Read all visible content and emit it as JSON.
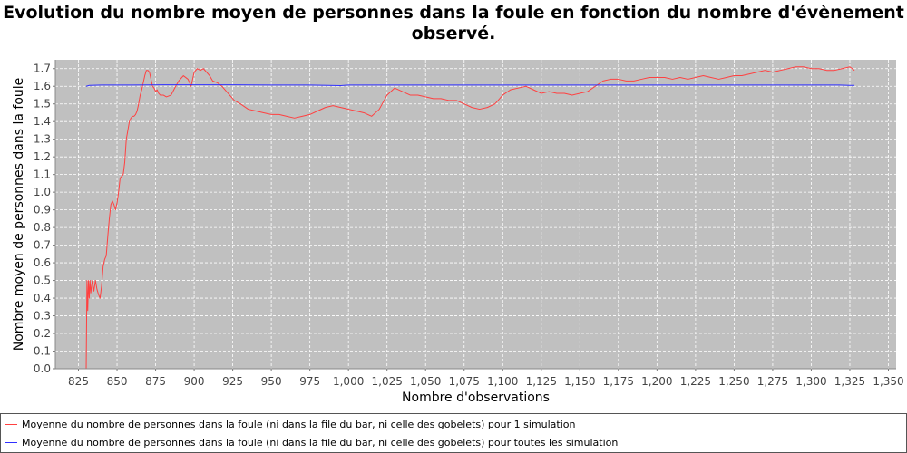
{
  "chart_data": {
    "type": "line",
    "title": "Evolution du nombre moyen de personnes dans la foule en fonction du nombre d'évènement observé.",
    "xlabel": "Nombre d'observations",
    "ylabel": "Nombre moyen de personnes dans la foule",
    "xlim": [
      810,
      1355
    ],
    "ylim": [
      0,
      1.75
    ],
    "x_ticks": [
      825,
      850,
      875,
      900,
      925,
      950,
      975,
      1000,
      1025,
      1050,
      1075,
      1100,
      1125,
      1150,
      1175,
      1200,
      1225,
      1250,
      1275,
      1300,
      1325,
      1350
    ],
    "x_tick_labels": [
      "825",
      "850",
      "875",
      "900",
      "925",
      "950",
      "975",
      "1,000",
      "1,025",
      "1,050",
      "1,075",
      "1,100",
      "1,125",
      "1,150",
      "1,175",
      "1,200",
      "1,225",
      "1,250",
      "1,275",
      "1,300",
      "1,325",
      "1,350"
    ],
    "y_ticks": [
      0.0,
      0.1,
      0.2,
      0.3,
      0.4,
      0.5,
      0.6,
      0.7,
      0.8,
      0.9,
      1.0,
      1.1,
      1.2,
      1.3,
      1.4,
      1.5,
      1.6,
      1.7
    ],
    "y_tick_labels": [
      "0.0",
      "0.1",
      "0.2",
      "0.3",
      "0.4",
      "0.5",
      "0.6",
      "0.7",
      "0.8",
      "0.9",
      "1.0",
      "1.1",
      "1.2",
      "1.3",
      "1.4",
      "1.5",
      "1.6",
      "1.7"
    ],
    "grid": true,
    "legend_position": "bottom",
    "colors": {
      "plot_background": "#c0c0c0",
      "grid": "#ffffff"
    },
    "series": [
      {
        "name": "Moyenne du nombre de personnes dans la foule (ni dans la file du bar, ni celle des gobelets) pour 1 simulation",
        "color": "#ff4040",
        "x": [
          830,
          830.5,
          831,
          831.5,
          832,
          832.5,
          833,
          834,
          835,
          836,
          837,
          838,
          839,
          840,
          841,
          842,
          843,
          844,
          845,
          846,
          847,
          848,
          849,
          850,
          851,
          852,
          853,
          854,
          855,
          856,
          857,
          858,
          859,
          860,
          861,
          862,
          863,
          864,
          865,
          866,
          867,
          868,
          869,
          870,
          871,
          872,
          873,
          874,
          875,
          876,
          877,
          878,
          880,
          882,
          885,
          888,
          890,
          893,
          896,
          898,
          900,
          902,
          904,
          906,
          908,
          910,
          912,
          915,
          918,
          922,
          926,
          930,
          935,
          940,
          945,
          950,
          955,
          960,
          965,
          970,
          975,
          980,
          985,
          990,
          995,
          1000,
          1005,
          1010,
          1015,
          1020,
          1025,
          1030,
          1035,
          1040,
          1045,
          1050,
          1055,
          1060,
          1065,
          1070,
          1075,
          1080,
          1085,
          1090,
          1095,
          1100,
          1105,
          1110,
          1115,
          1120,
          1125,
          1130,
          1135,
          1140,
          1145,
          1150,
          1155,
          1160,
          1165,
          1170,
          1175,
          1180,
          1185,
          1190,
          1195,
          1200,
          1205,
          1210,
          1215,
          1220,
          1225,
          1230,
          1235,
          1240,
          1245,
          1250,
          1255,
          1260,
          1265,
          1270,
          1275,
          1280,
          1285,
          1290,
          1295,
          1300,
          1305,
          1310,
          1315,
          1320,
          1325,
          1328
        ],
        "y": [
          0.0,
          0.5,
          0.33,
          0.5,
          0.4,
          0.5,
          0.43,
          0.5,
          0.44,
          0.5,
          0.45,
          0.42,
          0.4,
          0.47,
          0.58,
          0.62,
          0.64,
          0.75,
          0.85,
          0.93,
          0.95,
          0.93,
          0.9,
          0.94,
          1.0,
          1.08,
          1.09,
          1.1,
          1.17,
          1.3,
          1.35,
          1.4,
          1.42,
          1.43,
          1.43,
          1.44,
          1.46,
          1.5,
          1.55,
          1.58,
          1.62,
          1.66,
          1.69,
          1.69,
          1.68,
          1.64,
          1.6,
          1.59,
          1.57,
          1.58,
          1.56,
          1.55,
          1.55,
          1.54,
          1.55,
          1.6,
          1.63,
          1.66,
          1.64,
          1.6,
          1.68,
          1.7,
          1.69,
          1.7,
          1.68,
          1.66,
          1.63,
          1.62,
          1.6,
          1.56,
          1.52,
          1.5,
          1.47,
          1.46,
          1.45,
          1.44,
          1.44,
          1.43,
          1.42,
          1.43,
          1.44,
          1.46,
          1.48,
          1.49,
          1.48,
          1.47,
          1.46,
          1.45,
          1.43,
          1.47,
          1.55,
          1.59,
          1.57,
          1.55,
          1.55,
          1.54,
          1.53,
          1.53,
          1.52,
          1.52,
          1.5,
          1.48,
          1.47,
          1.48,
          1.5,
          1.55,
          1.58,
          1.59,
          1.6,
          1.58,
          1.56,
          1.57,
          1.56,
          1.56,
          1.55,
          1.56,
          1.57,
          1.6,
          1.63,
          1.64,
          1.64,
          1.63,
          1.63,
          1.64,
          1.65,
          1.65,
          1.65,
          1.64,
          1.65,
          1.64,
          1.65,
          1.66,
          1.65,
          1.64,
          1.65,
          1.66,
          1.66,
          1.67,
          1.68,
          1.69,
          1.68,
          1.69,
          1.7,
          1.71,
          1.71,
          1.7,
          1.7,
          1.69,
          1.69,
          1.7,
          1.71,
          1.69
        ]
      },
      {
        "name": "Moyenne du nombre de personnes dans la foule (ni dans la file du bar, ni celle des gobelets) pour toutes les simulation",
        "color": "#3030ff",
        "x": [
          830,
          832,
          840,
          860,
          880,
          900,
          925,
          950,
          975,
          995,
          1000,
          1050,
          1100,
          1150,
          1200,
          1250,
          1300,
          1318,
          1325,
          1328
        ],
        "y": [
          1.6,
          1.605,
          1.607,
          1.607,
          1.608,
          1.608,
          1.608,
          1.607,
          1.607,
          1.604,
          1.607,
          1.607,
          1.607,
          1.607,
          1.607,
          1.607,
          1.607,
          1.607,
          1.605,
          1.605
        ]
      }
    ]
  }
}
